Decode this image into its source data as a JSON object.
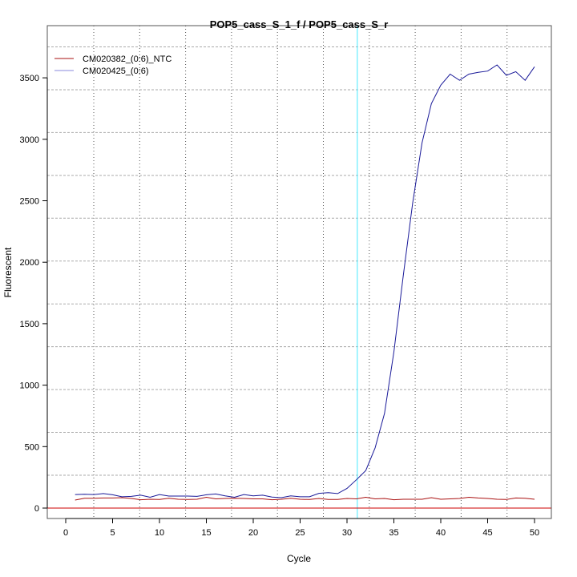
{
  "chart_data": {
    "type": "line",
    "title": "POP5_cass_S_1_f / POP5_cass_S_r",
    "xlabel": "Cycle",
    "ylabel": "Fluorescent",
    "xlim": [
      -2,
      52
    ],
    "ylim": [
      -80,
      3920
    ],
    "xticks": [
      0,
      5,
      10,
      15,
      20,
      25,
      30,
      35,
      40,
      45,
      50
    ],
    "yticks": [
      0,
      500,
      1000,
      1500,
      2000,
      2500,
      3000,
      3500
    ],
    "grid": true,
    "legend_position": "top-left",
    "threshold_cycle": 31.1,
    "threshold_fluorescence": 0,
    "colors": {
      "threshold_cycle_line": "#66eeff",
      "threshold_line": "#cc0000"
    },
    "series": [
      {
        "name": "CM020382_(0:6)_NTC",
        "color": "#aa1111",
        "x": [
          1,
          2,
          3,
          4,
          5,
          6,
          7,
          8,
          9,
          10,
          11,
          12,
          13,
          14,
          15,
          16,
          17,
          18,
          19,
          20,
          21,
          22,
          23,
          24,
          25,
          26,
          27,
          28,
          29,
          30,
          31,
          32,
          33,
          34,
          35,
          36,
          37,
          38,
          39,
          40,
          41,
          42,
          43,
          44,
          45,
          46,
          47,
          48,
          49,
          50
        ],
        "values": [
          65,
          80,
          80,
          82,
          82,
          85,
          78,
          68,
          72,
          70,
          80,
          72,
          70,
          72,
          88,
          75,
          78,
          80,
          78,
          75,
          75,
          68,
          72,
          80,
          72,
          70,
          78,
          70,
          70,
          78,
          75,
          88,
          75,
          78,
          68,
          72,
          72,
          72,
          85,
          72,
          75,
          78,
          88,
          82,
          78,
          72,
          70,
          82,
          80,
          72
        ]
      },
      {
        "name": "CM020425_(0:6)",
        "color": "#1a1a99",
        "x": [
          1,
          2,
          3,
          4,
          5,
          6,
          7,
          8,
          9,
          10,
          11,
          12,
          13,
          14,
          15,
          16,
          17,
          18,
          19,
          20,
          21,
          22,
          23,
          24,
          25,
          26,
          27,
          28,
          29,
          30,
          31,
          32,
          33,
          34,
          35,
          36,
          37,
          38,
          39,
          40,
          41,
          42,
          43,
          44,
          45,
          46,
          47,
          48,
          49,
          50
        ],
        "values": [
          110,
          112,
          110,
          118,
          108,
          92,
          95,
          105,
          88,
          110,
          98,
          98,
          98,
          95,
          108,
          115,
          100,
          88,
          110,
          100,
          105,
          90,
          85,
          100,
          92,
          92,
          120,
          125,
          118,
          160,
          230,
          305,
          490,
          770,
          1270,
          1890,
          2480,
          2970,
          3290,
          3440,
          3530,
          3480,
          3530,
          3545,
          3555,
          3605,
          3520,
          3550,
          3480,
          3590
        ]
      }
    ]
  }
}
